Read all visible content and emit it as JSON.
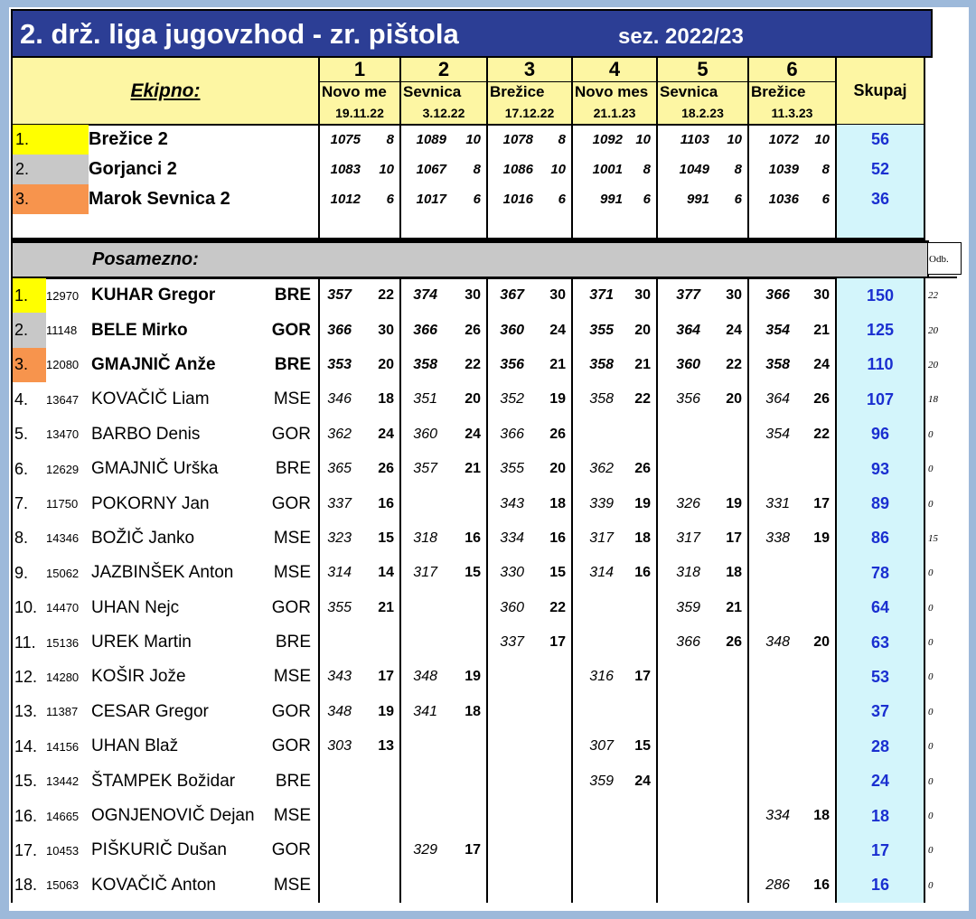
{
  "title": "2. drž. liga jugovzhod - zr. pištola",
  "season": "sez. 2022/23",
  "team_label": "Ekipno:",
  "individual_label": "Posamezno:",
  "total_label": "Skupaj",
  "odb_label": "Odb.",
  "rounds": [
    {
      "num": "1",
      "venue": "Novo me",
      "date": "19.11.22"
    },
    {
      "num": "2",
      "venue": "Sevnica",
      "date": "3.12.22"
    },
    {
      "num": "3",
      "venue": "Brežice",
      "date": "17.12.22"
    },
    {
      "num": "4",
      "venue": "Novo mes",
      "date": "21.1.23"
    },
    {
      "num": "5",
      "venue": "Sevnica",
      "date": "18.2.23"
    },
    {
      "num": "6",
      "venue": "Brežice",
      "date": "11.3.23"
    }
  ],
  "teams": [
    {
      "rank": "1.",
      "name": "Brežice 2",
      "results": [
        [
          "1075",
          "8"
        ],
        [
          "1089",
          "10"
        ],
        [
          "1078",
          "8"
        ],
        [
          "1092",
          "10"
        ],
        [
          "1103",
          "10"
        ],
        [
          "1072",
          "10"
        ]
      ],
      "total": "56"
    },
    {
      "rank": "2.",
      "name": "Gorjanci 2",
      "results": [
        [
          "1083",
          "10"
        ],
        [
          "1067",
          "8"
        ],
        [
          "1086",
          "10"
        ],
        [
          "1001",
          "8"
        ],
        [
          "1049",
          "8"
        ],
        [
          "1039",
          "8"
        ]
      ],
      "total": "52"
    },
    {
      "rank": "3.",
      "name": "Marok Sevnica 2",
      "results": [
        [
          "1012",
          "6"
        ],
        [
          "1017",
          "6"
        ],
        [
          "1016",
          "6"
        ],
        [
          "991",
          "6"
        ],
        [
          "991",
          "6"
        ],
        [
          "1036",
          "6"
        ]
      ],
      "total": "36"
    }
  ],
  "players": [
    {
      "rank": "1.",
      "id": "12970",
      "name": "KUHAR Gregor",
      "club": "BRE",
      "results": [
        [
          "357",
          "22"
        ],
        [
          "374",
          "30"
        ],
        [
          "367",
          "30"
        ],
        [
          "371",
          "30"
        ],
        [
          "377",
          "30"
        ],
        [
          "366",
          "30"
        ]
      ],
      "total": "150",
      "odb": "22"
    },
    {
      "rank": "2.",
      "id": "11148",
      "name": "BELE Mirko",
      "club": "GOR",
      "results": [
        [
          "366",
          "30"
        ],
        [
          "366",
          "26"
        ],
        [
          "360",
          "24"
        ],
        [
          "355",
          "20"
        ],
        [
          "364",
          "24"
        ],
        [
          "354",
          "21"
        ]
      ],
      "total": "125",
      "odb": "20"
    },
    {
      "rank": "3.",
      "id": "12080",
      "name": "GMAJNIČ Anže",
      "club": "BRE",
      "results": [
        [
          "353",
          "20"
        ],
        [
          "358",
          "22"
        ],
        [
          "356",
          "21"
        ],
        [
          "358",
          "21"
        ],
        [
          "360",
          "22"
        ],
        [
          "358",
          "24"
        ]
      ],
      "total": "110",
      "odb": "20"
    },
    {
      "rank": "4.",
      "id": "13647",
      "name": "KOVAČIČ Liam",
      "club": "MSE",
      "results": [
        [
          "346",
          "18"
        ],
        [
          "351",
          "20"
        ],
        [
          "352",
          "19"
        ],
        [
          "358",
          "22"
        ],
        [
          "356",
          "20"
        ],
        [
          "364",
          "26"
        ]
      ],
      "total": "107",
      "odb": "18"
    },
    {
      "rank": "5.",
      "id": "13470",
      "name": "BARBO Denis",
      "club": "GOR",
      "results": [
        [
          "362",
          "24"
        ],
        [
          "360",
          "24"
        ],
        [
          "366",
          "26"
        ],
        [
          "",
          ""
        ],
        [
          "",
          ""
        ],
        [
          "354",
          "22"
        ]
      ],
      "total": "96",
      "odb": "0"
    },
    {
      "rank": "6.",
      "id": "12629",
      "name": "GMAJNIČ Urška",
      "club": "BRE",
      "results": [
        [
          "365",
          "26"
        ],
        [
          "357",
          "21"
        ],
        [
          "355",
          "20"
        ],
        [
          "362",
          "26"
        ],
        [
          "",
          ""
        ],
        [
          "",
          ""
        ]
      ],
      "total": "93",
      "odb": "0"
    },
    {
      "rank": "7.",
      "id": "11750",
      "name": "POKORNY Jan",
      "club": "GOR",
      "results": [
        [
          "337",
          "16"
        ],
        [
          "",
          ""
        ],
        [
          "343",
          "18"
        ],
        [
          "339",
          "19"
        ],
        [
          "326",
          "19"
        ],
        [
          "331",
          "17"
        ]
      ],
      "total": "89",
      "odb": "0"
    },
    {
      "rank": "8.",
      "id": "14346",
      "name": "BOŽIČ Janko",
      "club": "MSE",
      "results": [
        [
          "323",
          "15"
        ],
        [
          "318",
          "16"
        ],
        [
          "334",
          "16"
        ],
        [
          "317",
          "18"
        ],
        [
          "317",
          "17"
        ],
        [
          "338",
          "19"
        ]
      ],
      "total": "86",
      "odb": "15"
    },
    {
      "rank": "9.",
      "id": "15062",
      "name": "JAZBINŠEK Anton",
      "club": "MSE",
      "results": [
        [
          "314",
          "14"
        ],
        [
          "317",
          "15"
        ],
        [
          "330",
          "15"
        ],
        [
          "314",
          "16"
        ],
        [
          "318",
          "18"
        ],
        [
          "",
          ""
        ]
      ],
      "total": "78",
      "odb": "0"
    },
    {
      "rank": "10.",
      "id": "14470",
      "name": "UHAN Nejc",
      "club": "GOR",
      "results": [
        [
          "355",
          "21"
        ],
        [
          "",
          ""
        ],
        [
          "360",
          "22"
        ],
        [
          "",
          ""
        ],
        [
          "359",
          "21"
        ],
        [
          "",
          ""
        ]
      ],
      "total": "64",
      "odb": "0"
    },
    {
      "rank": "11.",
      "id": "15136",
      "name": "UREK Martin",
      "club": "BRE",
      "results": [
        [
          "",
          ""
        ],
        [
          "",
          ""
        ],
        [
          "337",
          "17"
        ],
        [
          "",
          ""
        ],
        [
          "366",
          "26"
        ],
        [
          "348",
          "20"
        ]
      ],
      "total": "63",
      "odb": "0"
    },
    {
      "rank": "12.",
      "id": "14280",
      "name": "KOŠIR Jože",
      "club": "MSE",
      "results": [
        [
          "343",
          "17"
        ],
        [
          "348",
          "19"
        ],
        [
          "",
          ""
        ],
        [
          "316",
          "17"
        ],
        [
          "",
          ""
        ],
        [
          "",
          ""
        ]
      ],
      "total": "53",
      "odb": "0"
    },
    {
      "rank": "13.",
      "id": "11387",
      "name": "CESAR Gregor",
      "club": "GOR",
      "results": [
        [
          "348",
          "19"
        ],
        [
          "341",
          "18"
        ],
        [
          "",
          ""
        ],
        [
          "",
          ""
        ],
        [
          "",
          ""
        ],
        [
          "",
          ""
        ]
      ],
      "total": "37",
      "odb": "0"
    },
    {
      "rank": "14.",
      "id": "14156",
      "name": "UHAN Blaž",
      "club": "GOR",
      "results": [
        [
          "303",
          "13"
        ],
        [
          "",
          ""
        ],
        [
          "",
          ""
        ],
        [
          "307",
          "15"
        ],
        [
          "",
          ""
        ],
        [
          "",
          ""
        ]
      ],
      "total": "28",
      "odb": "0"
    },
    {
      "rank": "15.",
      "id": "13442",
      "name": "ŠTAMPEK Božidar",
      "club": "BRE",
      "results": [
        [
          "",
          ""
        ],
        [
          "",
          ""
        ],
        [
          "",
          ""
        ],
        [
          "359",
          "24"
        ],
        [
          "",
          ""
        ],
        [
          "",
          ""
        ]
      ],
      "total": "24",
      "odb": "0"
    },
    {
      "rank": "16.",
      "id": "14665",
      "name": "OGNJENOVIČ Dejan",
      "club": "MSE",
      "results": [
        [
          "",
          ""
        ],
        [
          "",
          ""
        ],
        [
          "",
          ""
        ],
        [
          "",
          ""
        ],
        [
          "",
          ""
        ],
        [
          "334",
          "18"
        ]
      ],
      "total": "18",
      "odb": "0"
    },
    {
      "rank": "17.",
      "id": "10453",
      "name": "PIŠKURIČ Dušan",
      "club": "GOR",
      "results": [
        [
          "",
          ""
        ],
        [
          "329",
          "17"
        ],
        [
          "",
          ""
        ],
        [
          "",
          ""
        ],
        [
          "",
          ""
        ],
        [
          "",
          ""
        ]
      ],
      "total": "17",
      "odb": "0"
    },
    {
      "rank": "18.",
      "id": "15063",
      "name": "KOVAČIČ Anton",
      "club": "MSE",
      "results": [
        [
          "",
          ""
        ],
        [
          "",
          ""
        ],
        [
          "",
          ""
        ],
        [
          "",
          ""
        ],
        [
          "",
          ""
        ],
        [
          "286",
          "16"
        ]
      ],
      "total": "16",
      "odb": "0"
    }
  ],
  "colors": {
    "title_bg": "#2c3e95",
    "header_bg": "#fdf6a3",
    "total_bg": "#d3f5fb",
    "total_text": "#1a2fd0",
    "gold": "#ffff00",
    "silver": "#c8c8c8",
    "bronze": "#f7944d"
  }
}
